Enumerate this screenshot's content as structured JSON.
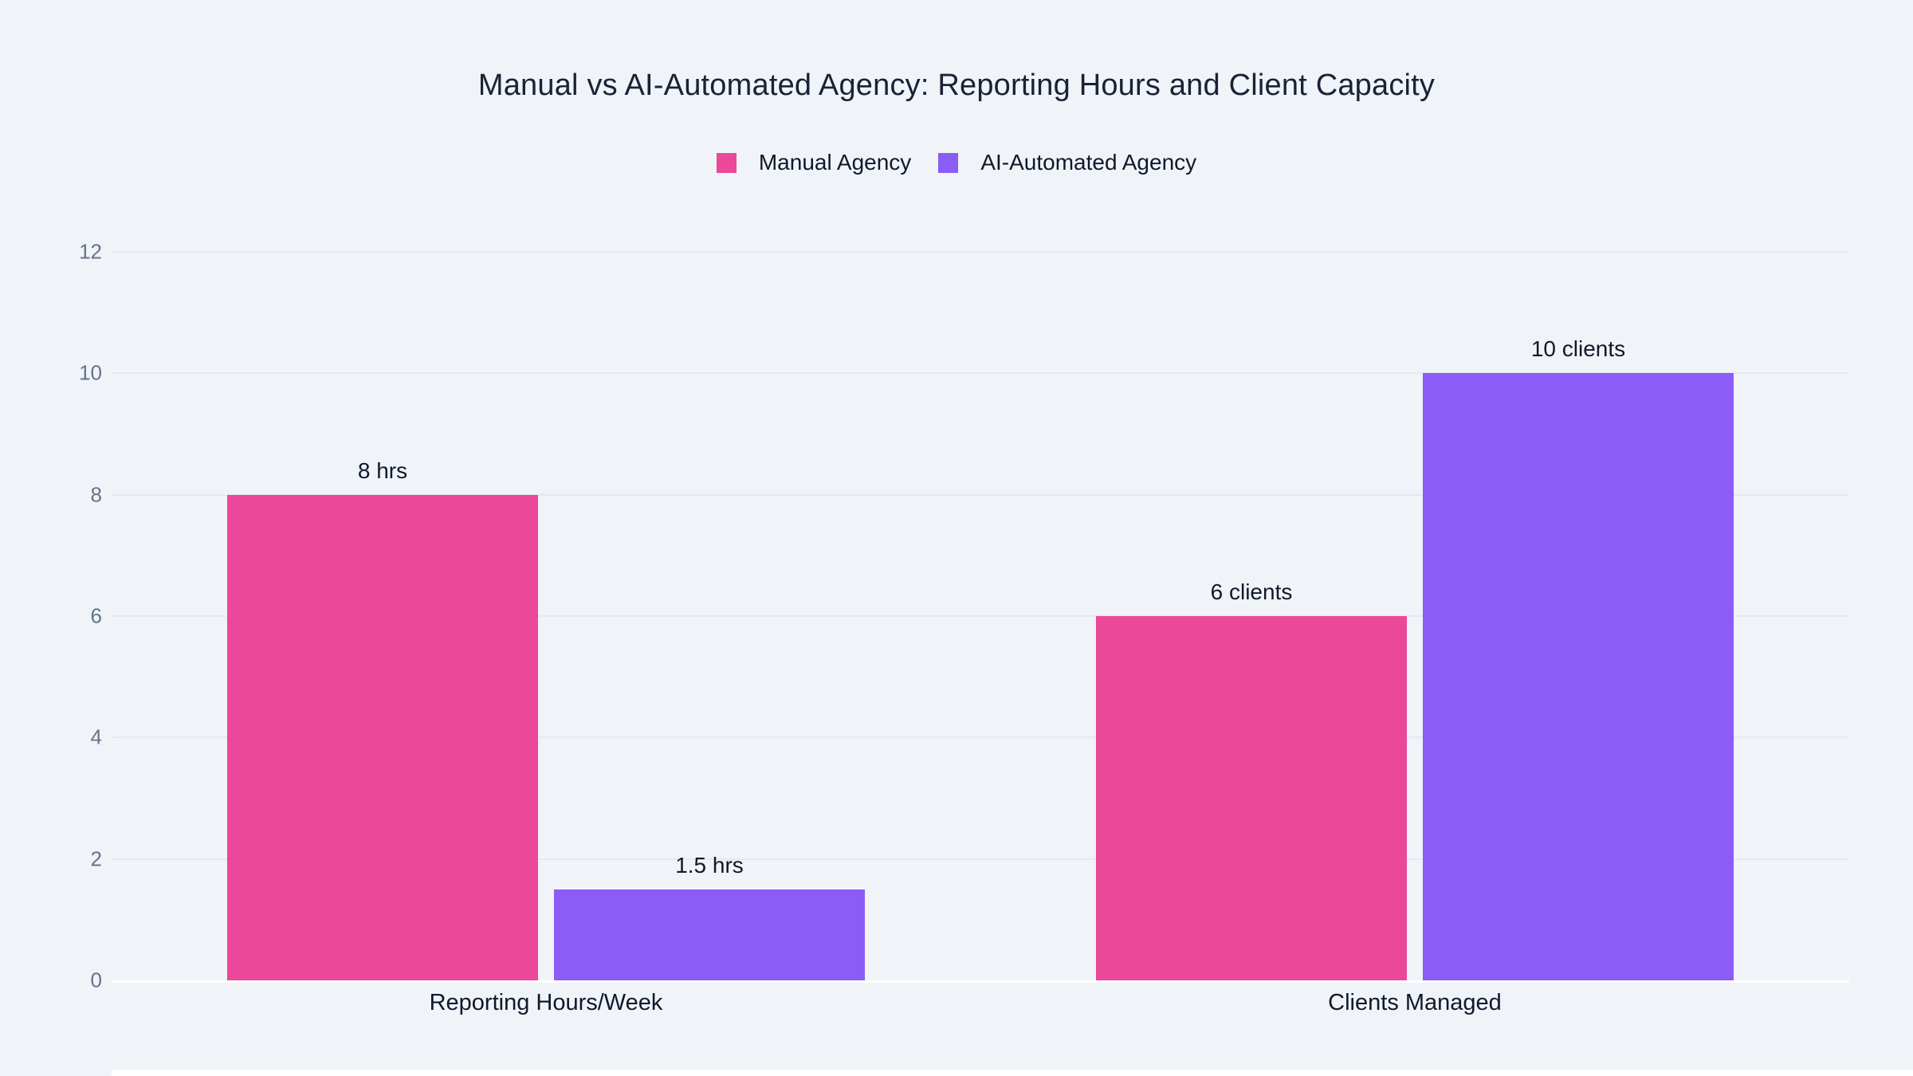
{
  "page": {
    "background": "#f0f3f8"
  },
  "chart_data": {
    "type": "bar",
    "title": "Manual vs AI-Automated Agency: Reporting Hours and Client Capacity",
    "categories": [
      "Reporting Hours/Week",
      "Clients Managed"
    ],
    "series": [
      {
        "name": "Manual Agency",
        "color": "#ec4899",
        "values": [
          8,
          6
        ],
        "value_labels": [
          "8 hrs",
          "6 clients"
        ]
      },
      {
        "name": "AI-Automated Agency",
        "color": "#8b5cf6",
        "values": [
          1.5,
          10
        ],
        "value_labels": [
          "1.5 hrs",
          "10 clients"
        ]
      }
    ],
    "ylim": [
      0,
      12
    ],
    "yticks": [
      0,
      2,
      4,
      6,
      8,
      10,
      12
    ],
    "grid": true,
    "legend_position": "top",
    "xlabel": "",
    "ylabel": ""
  },
  "style": {
    "title_color": "#1a2235",
    "text_color": "#10192b",
    "tick_color": "#64748b",
    "grid_color": "#e4e9f1",
    "baseline_color": "#ffffff"
  }
}
